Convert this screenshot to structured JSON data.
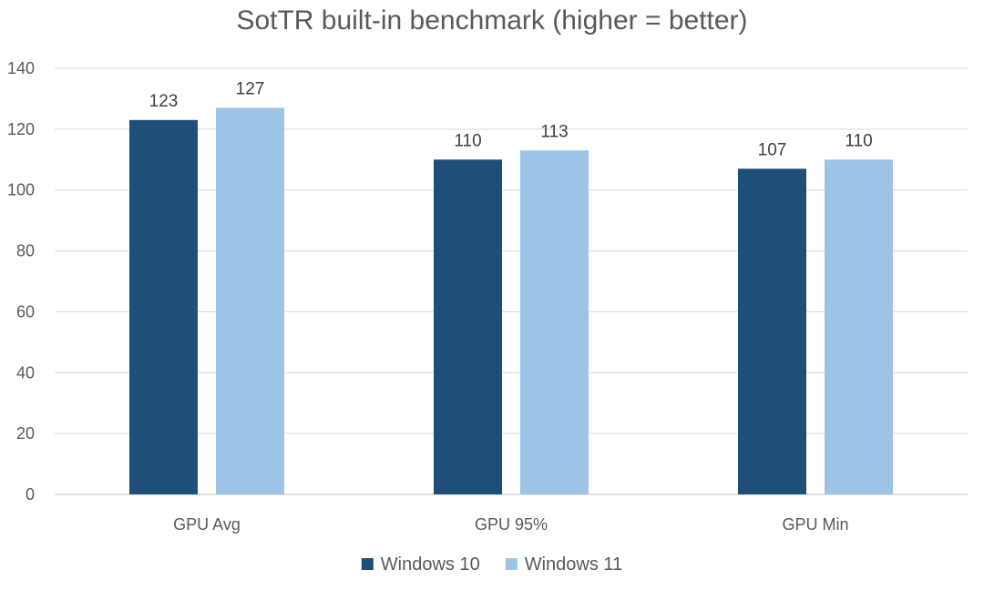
{
  "chart_data": {
    "type": "bar",
    "title": "SotTR built-in benchmark (higher = better)",
    "categories": [
      "GPU Avg",
      "GPU 95%",
      "GPU Min"
    ],
    "series": [
      {
        "name": "Windows 10",
        "values": [
          123,
          110,
          107
        ],
        "color": "#1f4e79"
      },
      {
        "name": "Windows 11",
        "values": [
          127,
          113,
          110
        ],
        "color": "#9dc3e6"
      }
    ],
    "ylim": [
      0,
      140
    ],
    "yticks": [
      0,
      20,
      40,
      60,
      80,
      100,
      120,
      140
    ],
    "xlabel": "",
    "ylabel": "",
    "grid": true,
    "legend_position": "bottom-center",
    "data_labels": true
  }
}
